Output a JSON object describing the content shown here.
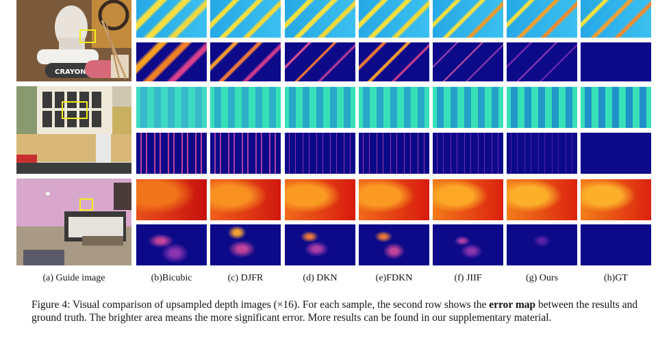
{
  "labels": {
    "a": "(a) Guide image",
    "b": "(b)Bicubic",
    "c": "(c) DJFR",
    "d": "(d) DKN",
    "e": "(e)FDKN",
    "f": "(f) JIIF",
    "g": "(g) Ours",
    "h": "(h)GT"
  },
  "caption": {
    "prefix": "Figure 4: Visual comparison of upsampled depth images (×16). For each sample, the second row shows the ",
    "bold": "error map",
    "suffix": " between the results and ground truth. The brighter area means the more significant error. More results can be found in our supplementary material."
  },
  "guide_text": "CRAYON",
  "colors": {
    "highlight_box": "#f2ee1a",
    "error_background": "#0d0a8a",
    "depth_sky": "#2ab7ef"
  }
}
